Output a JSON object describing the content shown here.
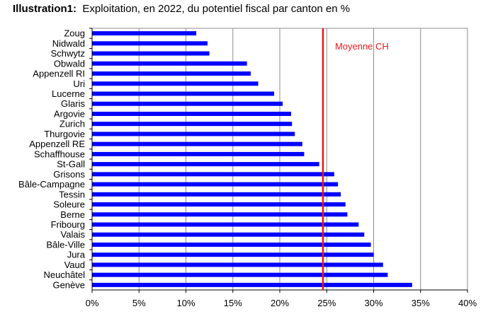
{
  "title": {
    "number": "Illustration1:",
    "text": "Exploitation, en 2022, du potentiel fiscal par canton en %"
  },
  "chart_data": {
    "type": "bar",
    "orientation": "horizontal",
    "categories": [
      "Zoug",
      "Nidwald",
      "Schwytz",
      "Obwald",
      "Appenzell RI",
      "Uri",
      "Lucerne",
      "Glaris",
      "Argovie",
      "Zurich",
      "Thurgovie",
      "Appenzell RE",
      "Schaffhouse",
      "St-Gall",
      "Grisons",
      "Bâle-Campagne",
      "Tessin",
      "Soleure",
      "Berne",
      "Fribourg",
      "Valais",
      "Bâle-Ville",
      "Jura",
      "Vaud",
      "Neuchâtel",
      "Genève"
    ],
    "values": [
      11.1,
      12.3,
      12.5,
      16.5,
      16.9,
      17.7,
      19.4,
      20.3,
      21.2,
      21.3,
      21.6,
      22.4,
      22.6,
      24.2,
      25.8,
      26.2,
      26.5,
      27.0,
      27.2,
      28.4,
      29.0,
      29.7,
      30.0,
      31.0,
      31.5,
      34.1
    ],
    "xlim": [
      0,
      40
    ],
    "xticks": [
      "0%",
      "5%",
      "10%",
      "15%",
      "20%",
      "25%",
      "30%",
      "35%",
      "40%"
    ],
    "grid": "vertical",
    "reference_line": {
      "label": "Moyenne CH",
      "value": 24.6,
      "color": "#e8191c"
    },
    "bar_color": "#0000ff"
  }
}
